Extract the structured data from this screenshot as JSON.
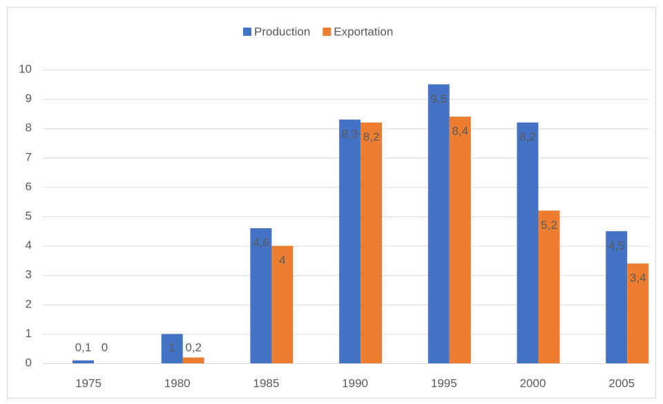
{
  "chart_data": {
    "type": "bar",
    "categories": [
      "1975",
      "1980",
      "1985",
      "1990",
      "1995",
      "2000",
      "2005"
    ],
    "series": [
      {
        "name": "Production",
        "color": "#4472c4",
        "values": [
          0.1,
          1,
          4.6,
          8.3,
          9.5,
          8.2,
          4.5
        ],
        "value_labels": [
          "0,1",
          "1",
          "4,6",
          "8,3",
          "9,5",
          "8,2",
          "4,5"
        ]
      },
      {
        "name": "Exportation",
        "color": "#ed7d31",
        "values": [
          0,
          0.2,
          4,
          8.2,
          8.4,
          5.2,
          3.4
        ],
        "value_labels": [
          "0",
          "0,2",
          "4",
          "8,2",
          "8,4",
          "5,2",
          "3,4"
        ]
      }
    ],
    "ylim": [
      0,
      10
    ],
    "yticks": [
      0,
      1,
      2,
      3,
      4,
      5,
      6,
      7,
      8,
      9,
      10
    ],
    "grid": true,
    "legend": "top"
  }
}
